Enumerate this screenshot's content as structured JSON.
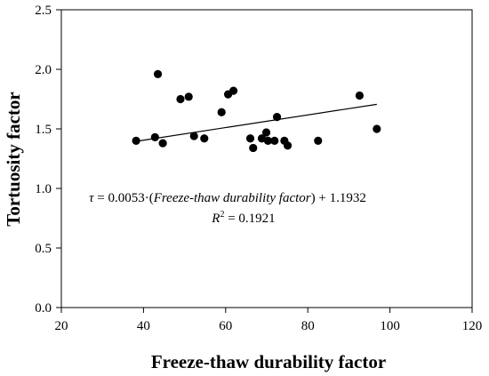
{
  "chart_data": {
    "type": "scatter",
    "xlabel": "Freeze-thaw durability factor",
    "ylabel": "Tortuosity factor",
    "xlim": [
      20,
      120
    ],
    "ylim": [
      0.0,
      2.5
    ],
    "x_ticks": [
      "20",
      "40",
      "60",
      "80",
      "100",
      "120"
    ],
    "y_ticks": [
      "0.0",
      "0.5",
      "1.0",
      "1.5",
      "2.0",
      "2.5"
    ],
    "grid": false,
    "points": [
      {
        "x": 38.2,
        "y": 1.4
      },
      {
        "x": 42.8,
        "y": 1.43
      },
      {
        "x": 43.5,
        "y": 1.96
      },
      {
        "x": 44.7,
        "y": 1.38
      },
      {
        "x": 49.0,
        "y": 1.75
      },
      {
        "x": 51.0,
        "y": 1.77
      },
      {
        "x": 52.3,
        "y": 1.44
      },
      {
        "x": 54.8,
        "y": 1.42
      },
      {
        "x": 59.0,
        "y": 1.64
      },
      {
        "x": 60.6,
        "y": 1.79
      },
      {
        "x": 61.9,
        "y": 1.82
      },
      {
        "x": 66.0,
        "y": 1.42
      },
      {
        "x": 66.7,
        "y": 1.34
      },
      {
        "x": 68.8,
        "y": 1.42
      },
      {
        "x": 69.9,
        "y": 1.47
      },
      {
        "x": 70.3,
        "y": 1.4
      },
      {
        "x": 71.9,
        "y": 1.4
      },
      {
        "x": 72.5,
        "y": 1.6
      },
      {
        "x": 74.3,
        "y": 1.4
      },
      {
        "x": 75.1,
        "y": 1.36
      },
      {
        "x": 82.5,
        "y": 1.4
      },
      {
        "x": 92.6,
        "y": 1.78
      },
      {
        "x": 96.8,
        "y": 1.5
      }
    ],
    "trendline": {
      "slope": 0.0053,
      "intercept": 1.1932,
      "x_range": [
        38.2,
        96.8
      ]
    },
    "annotation": {
      "eq_symbol": "τ",
      "eq_part1": " = 0.0053·(",
      "eq_italic": "Freeze-thaw durability factor",
      "eq_part2": ") + 1.1932",
      "r2_symbol": "R",
      "r2_sup": "2",
      "r2_value": " = 0.1921"
    }
  }
}
